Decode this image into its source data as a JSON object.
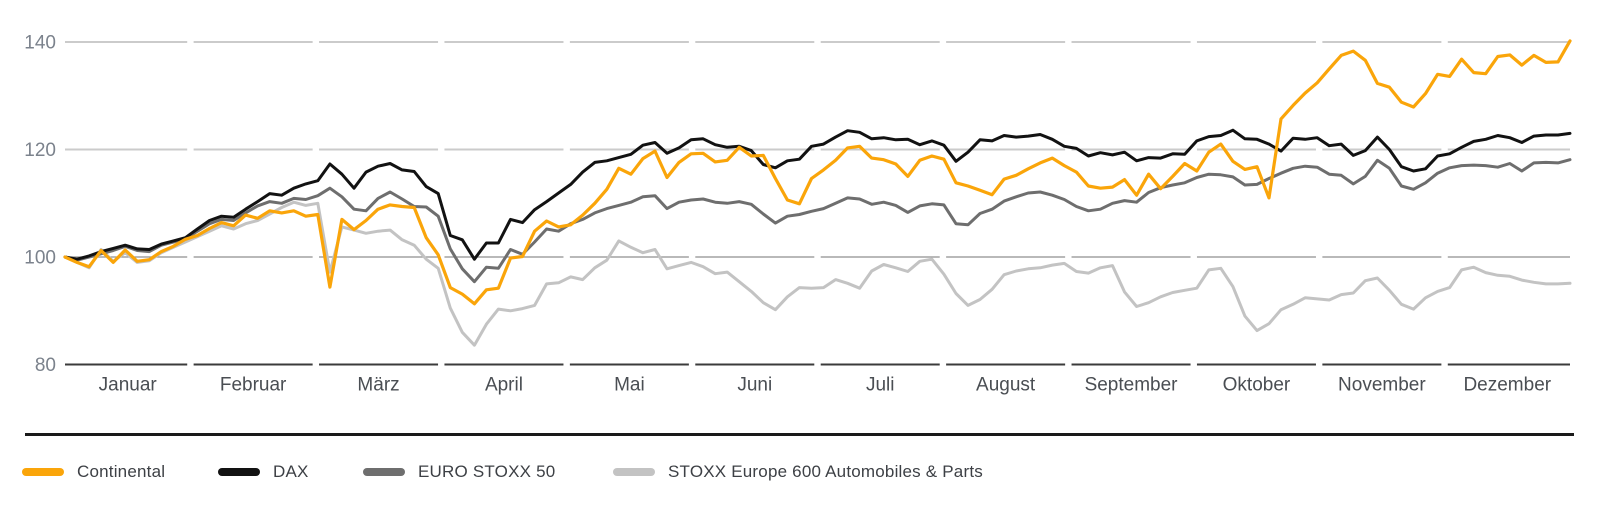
{
  "chart_data": {
    "type": "line",
    "categories": [
      "Januar",
      "Februar",
      "März",
      "April",
      "Mai",
      "Juni",
      "Juli",
      "August",
      "September",
      "Oktober",
      "November",
      "Dezember"
    ],
    "y_ticks": [
      140,
      120,
      100,
      80
    ],
    "ylim": [
      80,
      143
    ],
    "baseline_value": 100,
    "grid": "horizontal-segmented-per-month",
    "legend_position": "bottom",
    "points_per_series": 126,
    "x_note": "points evenly spaced Januar through Dezember",
    "series": [
      {
        "name": "Continental",
        "color": "#FAA50A",
        "values": [
          100,
          99.0,
          98.2,
          101.2,
          99.0,
          101.3,
          99.2,
          99.5,
          101.0,
          102.0,
          103.3,
          104.0,
          105.3,
          106.4,
          105.8,
          107.8,
          107.2,
          108.6,
          108.2,
          108.6,
          107.6,
          107.9,
          94.4,
          107.0,
          105.1,
          106.8,
          108.9,
          109.7,
          109.4,
          109.2,
          103.6,
          100.4,
          94.3,
          93.1,
          91.3,
          93.9,
          94.2,
          99.8,
          100.1,
          104.8,
          106.7,
          105.6,
          106.0,
          107.8,
          110.0,
          112.6,
          116.5,
          115.4,
          118.3,
          119.7,
          114.8,
          117.6,
          119.2,
          119.3,
          117.7,
          118.0,
          120.4,
          118.8,
          118.9,
          114.6,
          110.6,
          109.9,
          114.6,
          116.2,
          118.0,
          120.3,
          120.6,
          118.4,
          118.1,
          117.3,
          115.0,
          118.0,
          118.8,
          118.2,
          113.8,
          113.2,
          112.4,
          111.6,
          114.5,
          115.2,
          116.4,
          117.5,
          118.4,
          117.0,
          115.8,
          113.2,
          112.8,
          113.0,
          114.4,
          111.5,
          115.4,
          112.7,
          115.0,
          117.4,
          116.0,
          119.5,
          121.0,
          117.8,
          116.3,
          116.8,
          111.0,
          125.7,
          128.2,
          130.5,
          132.4,
          135.0,
          137.5,
          138.3,
          136.6,
          132.3,
          131.6,
          128.8,
          127.9,
          130.4,
          134.0,
          133.6,
          136.8,
          134.3,
          134.1,
          137.3,
          137.6,
          135.7,
          137.5,
          136.2,
          136.3,
          140.2
        ]
      },
      {
        "name": "DAX",
        "color": "#121212",
        "values": [
          100,
          99.6,
          100.2,
          101.0,
          101.6,
          102.2,
          101.5,
          101.4,
          102.4,
          103.0,
          103.6,
          105.2,
          106.8,
          107.6,
          107.4,
          108.9,
          110.3,
          111.8,
          111.5,
          112.8,
          113.6,
          114.2,
          117.3,
          115.4,
          112.8,
          115.8,
          116.9,
          117.4,
          116.2,
          115.9,
          113.1,
          111.8,
          104.0,
          103.2,
          99.6,
          102.6,
          102.6,
          107.0,
          106.4,
          108.8,
          110.3,
          111.9,
          113.5,
          115.8,
          117.6,
          117.9,
          118.5,
          119.1,
          120.8,
          121.3,
          119.3,
          120.3,
          121.8,
          122.0,
          120.9,
          120.4,
          120.6,
          119.8,
          117.2,
          116.6,
          117.9,
          118.2,
          120.6,
          121.0,
          122.3,
          123.5,
          123.2,
          122.0,
          122.2,
          121.8,
          121.9,
          120.9,
          121.6,
          120.8,
          117.8,
          119.5,
          121.8,
          121.6,
          122.6,
          122.3,
          122.5,
          122.8,
          121.9,
          120.6,
          120.2,
          118.8,
          119.4,
          119.0,
          119.5,
          117.9,
          118.5,
          118.4,
          119.2,
          119.1,
          121.6,
          122.4,
          122.6,
          123.6,
          122.0,
          121.9,
          121.0,
          119.7,
          122.1,
          121.9,
          122.2,
          120.7,
          121.0,
          118.9,
          119.8,
          122.3,
          120.0,
          116.8,
          116.0,
          116.4,
          118.8,
          119.2,
          120.4,
          121.5,
          121.9,
          122.6,
          122.2,
          121.3,
          122.5,
          122.7,
          122.7,
          123.0
        ]
      },
      {
        "name": "EURO STOXX 50",
        "color": "#6E6E6E",
        "values": [
          100,
          99.4,
          100.0,
          100.6,
          101.2,
          102.0,
          101.2,
          101.0,
          102.2,
          102.8,
          103.4,
          104.8,
          106.2,
          107.0,
          106.8,
          108.2,
          109.5,
          110.3,
          110.0,
          110.9,
          110.7,
          111.4,
          112.8,
          111.2,
          108.9,
          108.6,
          110.9,
          112.1,
          110.8,
          109.4,
          109.3,
          107.6,
          101.5,
          97.8,
          95.4,
          98.1,
          97.9,
          101.4,
          100.5,
          102.8,
          105.2,
          104.8,
          106.2,
          107.0,
          108.2,
          109.0,
          109.6,
          110.2,
          111.2,
          111.4,
          109.0,
          110.2,
          110.6,
          110.8,
          110.2,
          110.0,
          110.3,
          109.8,
          108.0,
          106.3,
          107.6,
          107.9,
          108.5,
          109.0,
          110.0,
          111.0,
          110.8,
          109.8,
          110.2,
          109.6,
          108.3,
          109.5,
          109.9,
          109.7,
          106.2,
          106.0,
          108.1,
          108.9,
          110.4,
          111.2,
          111.9,
          112.1,
          111.5,
          110.7,
          109.4,
          108.6,
          108.9,
          110.0,
          110.5,
          110.2,
          112.0,
          112.9,
          113.4,
          113.8,
          114.8,
          115.4,
          115.3,
          114.9,
          113.4,
          113.5,
          114.6,
          115.6,
          116.5,
          116.9,
          116.7,
          115.4,
          115.2,
          113.6,
          115.0,
          118.0,
          116.5,
          113.2,
          112.6,
          113.8,
          115.6,
          116.6,
          117.0,
          117.1,
          117.0,
          116.7,
          117.4,
          116.0,
          117.5,
          117.6,
          117.5,
          118.1
        ]
      },
      {
        "name": "STOXX Europe 600 Automobiles & Parts",
        "color": "#C3C3C3",
        "values": [
          100,
          99.0,
          98.0,
          101.4,
          99.2,
          100.8,
          99.0,
          99.3,
          100.8,
          101.8,
          102.8,
          103.8,
          104.8,
          105.8,
          105.2,
          106.2,
          106.8,
          108.0,
          109.2,
          110.2,
          109.6,
          110.0,
          97.2,
          105.6,
          105.0,
          104.4,
          104.8,
          105.0,
          103.2,
          102.2,
          99.6,
          97.9,
          90.5,
          86.0,
          83.6,
          87.5,
          90.3,
          90.0,
          90.4,
          91.0,
          95.0,
          95.2,
          96.3,
          95.8,
          98.0,
          99.4,
          103.0,
          101.8,
          100.8,
          101.4,
          97.8,
          98.4,
          99.0,
          98.2,
          96.9,
          97.2,
          95.4,
          93.6,
          91.5,
          90.2,
          92.6,
          94.3,
          94.2,
          94.3,
          95.8,
          95.1,
          94.2,
          97.4,
          98.6,
          98.0,
          97.3,
          99.2,
          99.6,
          96.8,
          93.2,
          91.0,
          92.1,
          94.0,
          96.7,
          97.4,
          97.8,
          98.0,
          98.5,
          98.8,
          97.3,
          97.0,
          98.0,
          98.4,
          93.5,
          90.8,
          91.5,
          92.6,
          93.4,
          93.8,
          94.2,
          97.6,
          97.9,
          94.5,
          89.0,
          86.3,
          87.6,
          90.2,
          91.2,
          92.4,
          92.2,
          92.0,
          93.0,
          93.3,
          95.6,
          96.1,
          93.8,
          91.2,
          90.3,
          92.4,
          93.6,
          94.3,
          97.6,
          98.1,
          97.1,
          96.6,
          96.4,
          95.7,
          95.3,
          95.0,
          95.0,
          95.1
        ]
      }
    ]
  },
  "colors": {
    "background": "#FFFFFF",
    "grid_light": "#CBCBCB",
    "grid_mid": "#8F8F8F",
    "grid_dark": "#3B3B3B",
    "separator": "#1A1A1A",
    "tick_label": "#7B828C",
    "month_label": "#4A4E53",
    "legend_label": "#3D4045"
  },
  "legend": {
    "items": [
      {
        "label": "Continental"
      },
      {
        "label": "DAX"
      },
      {
        "label": "EURO STOXX 50"
      },
      {
        "label": "STOXX Europe 600 Automobiles & Parts"
      }
    ]
  }
}
